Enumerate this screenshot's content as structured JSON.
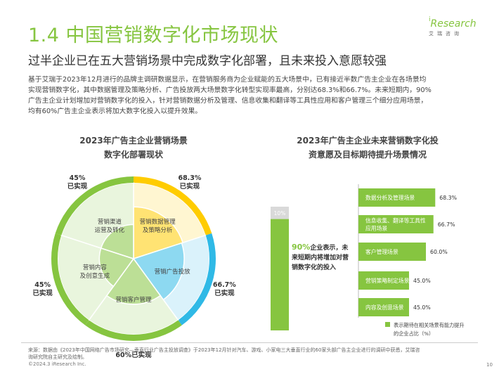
{
  "header": {
    "title": "1.4 中国营销数字化市场现状",
    "subtitle": "过半企业已在五大营销场景中完成数字化部署，且未来投入意愿较强",
    "body_lines": [
      "基于艾瑞于2023年12月进行的品牌主调研数据显示，在营销服务商为企业赋能的五大场景中，已有接近半数广告主企业在各场景均",
      "实现营销数字化，其中数据管理及策略分析、广告投放两大场景数字化转型实现率最高，分别达68.3%和66.7%。未来短期内，90%",
      "广告主企业计划增加对营销数字化的投入，针对营销数据分析及管理、信息收集和翻译等工具性应用和客户管理三个细分应用场景，",
      "均有60%广告主企业表示将加大数字化投入以提升效果。"
    ]
  },
  "logo": {
    "text": "Research",
    "dot": "i",
    "sub": "艾瑞咨询"
  },
  "colors": {
    "brand_green": "#86c540",
    "yellow": "#ffcc00",
    "cyan": "#2fb9e6",
    "green": "#86c540"
  },
  "chart_data": [
    {
      "type": "pie",
      "title_lines": [
        "2023年广告主企业营销场景",
        "数字化部署现状"
      ],
      "categories": [
        "营销数据管理及策略分析",
        "营销广告投放",
        "营销客户管理",
        "营销内容及创意生成",
        "营销渠道运营及转化"
      ],
      "labels": [
        [
          "营销数据管理",
          "及策略分析"
        ],
        [
          "营销广告投放"
        ],
        [
          "营销客户管理"
        ],
        [
          "营销内容",
          "及创意生成"
        ],
        [
          "营销渠道",
          "运营及转化"
        ]
      ],
      "values": [
        68.3,
        66.7,
        60,
        45,
        45
      ],
      "value_labels": [
        [
          "68.3%",
          "已实现"
        ],
        [
          "66.7%",
          "已实现"
        ],
        [
          "60%已实现"
        ],
        [
          "45%",
          "已实现"
        ],
        [
          "45%",
          "已实现"
        ]
      ],
      "colors": [
        "#ffcc00",
        "#2fb9e6",
        "#86c540",
        "#86c540",
        "#86c540"
      ]
    },
    {
      "type": "bar",
      "title_lines": [
        "2023年广告主企业未来营销数字化投",
        "资意愿及目标期待提升场景情况"
      ],
      "stack": {
        "values": [
          10,
          90
        ],
        "top_label": "10%",
        "callout_value": "90%",
        "callout_text": [
          "企业表示，未",
          "来短期内将增加对营",
          "销数字化的投入"
        ]
      },
      "categories": [
        [
          "数据分析及管理场景"
        ],
        [
          "信息收集、翻译等工具性",
          "应用场景"
        ],
        [
          "客户管理场景"
        ],
        [
          "营销策略制定场景"
        ],
        [
          "内容及创意场景"
        ]
      ],
      "values": [
        68.3,
        66.7,
        60.0,
        45.0,
        45.0
      ],
      "value_labels": [
        "68.3%",
        "66.7%",
        "60.0%",
        "45.0%",
        "45.0%"
      ],
      "xlim": [
        0,
        100
      ],
      "legend": {
        "label_lines": [
          "表示期待在相关场景有能力提升",
          "的企业占比（%）"
        ]
      }
    }
  ],
  "footer": {
    "source_lines": [
      "来源：数据由《2023年中国网络广告市场研究—垂直行业广告主投放调查》于2023年12月针对汽车、游戏、小家电三大垂直行业的60家头部广告主企业进行的调研中获悉，艾瑞咨",
      "询研究院自主研究及绘制。"
    ],
    "copyright": "©2024.3 iResearch Inc.",
    "page": "10"
  }
}
